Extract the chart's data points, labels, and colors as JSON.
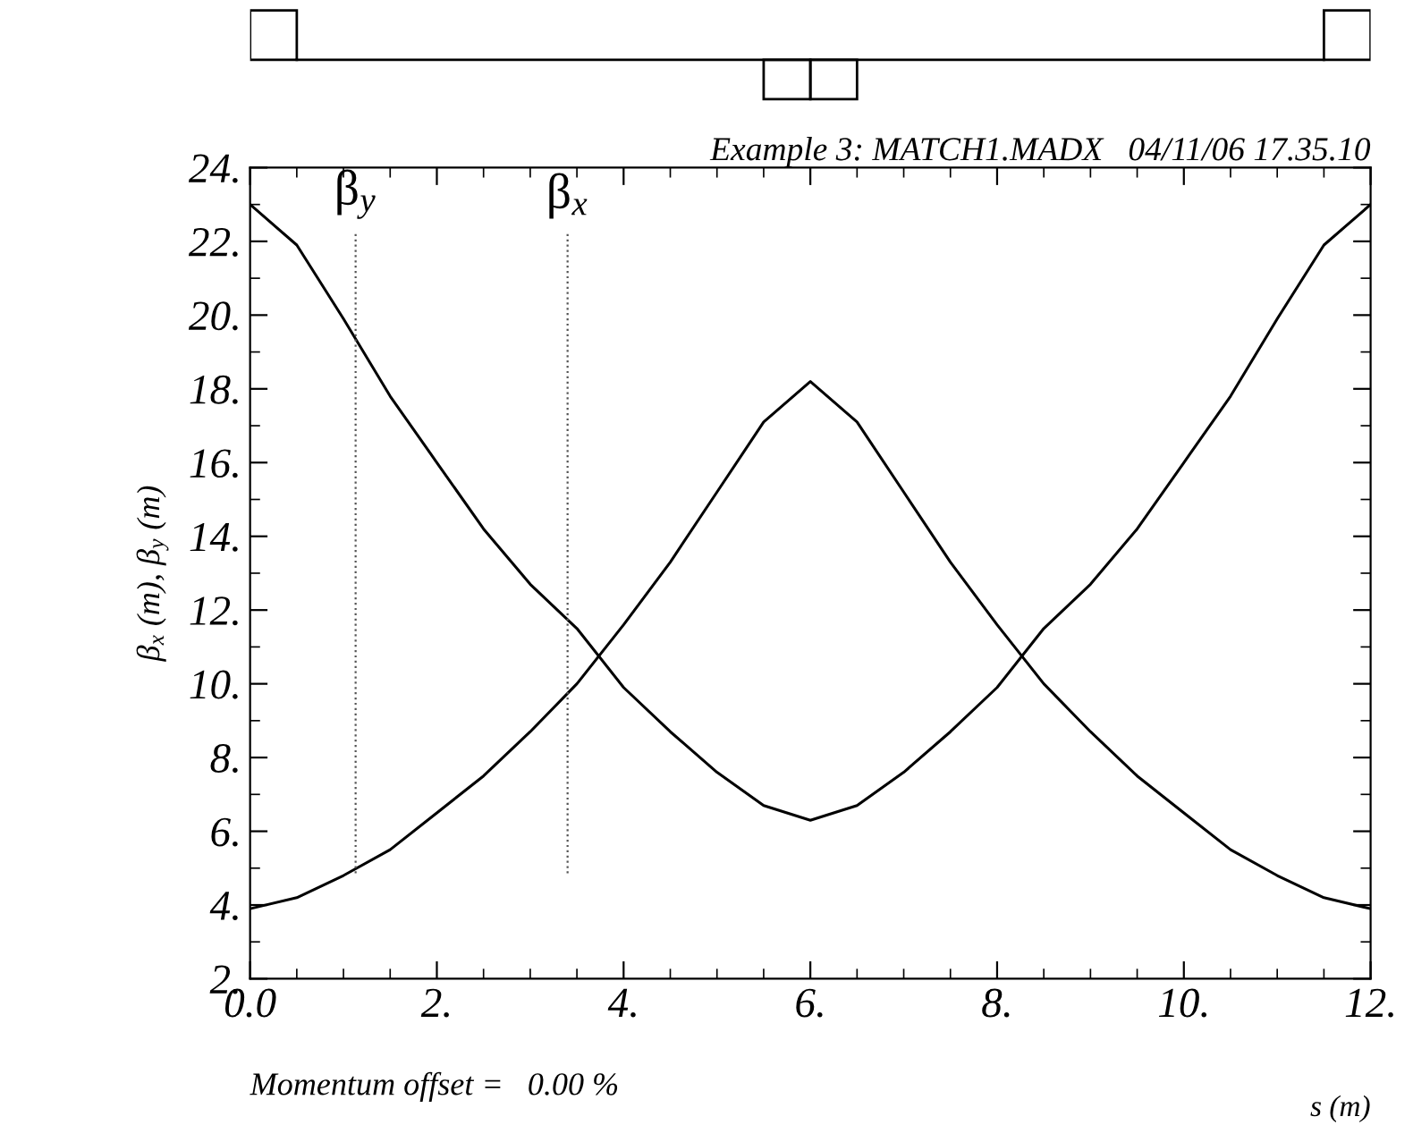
{
  "chart_data": {
    "type": "line",
    "title": "Example 3: MATCH1.MADX   04/11/06 17.35.10",
    "xlabel": "s (m)",
    "ylabel": "β$_{x}$ (m), β$_{y}$ (m)",
    "annotations": [
      "Momentum offset =   0.00 %"
    ],
    "x": [
      0,
      0.5,
      1,
      1.5,
      2,
      2.5,
      3,
      3.5,
      4,
      4.5,
      5,
      5.5,
      6,
      6.5,
      7,
      7.5,
      8,
      8.5,
      9,
      9.5,
      10,
      10.5,
      11,
      11.5,
      12
    ],
    "series": [
      {
        "color": "#000000",
        "values": [
          23.0,
          21.9,
          19.9,
          17.8,
          16.0,
          14.2,
          12.7,
          11.5,
          9.9,
          8.7,
          7.6,
          6.7,
          6.3,
          6.7,
          7.6,
          8.7,
          9.9,
          11.5,
          12.7,
          14.2,
          16.0,
          17.8,
          19.9,
          21.9,
          23.0
        ]
      },
      {
        "color": "#000000",
        "values": [
          3.9,
          4.2,
          4.8,
          5.5,
          6.5,
          7.5,
          8.7,
          10.0,
          11.6,
          13.3,
          15.2,
          17.1,
          18.2,
          17.1,
          15.2,
          13.3,
          11.6,
          10.0,
          8.7,
          7.5,
          6.5,
          5.5,
          4.8,
          4.2,
          3.9
        ]
      }
    ],
    "ref_lines": [
      {
        "axis": "x",
        "value": 1.13,
        "label": "β$_{y}$",
        "color": "#555555",
        "line_style": "dotted"
      },
      {
        "axis": "x",
        "value": 3.4,
        "label": "β$_{x}$",
        "color": "#555555",
        "line_style": "dotted"
      }
    ],
    "xlim": [
      0,
      12
    ],
    "ylim": [
      2,
      24
    ],
    "xticks": [
      {
        "value": 0,
        "label": "0.0"
      },
      {
        "value": 2,
        "label": "2."
      },
      {
        "value": 4,
        "label": "4."
      },
      {
        "value": 6,
        "label": "6."
      },
      {
        "value": 8,
        "label": "8."
      },
      {
        "value": 10,
        "label": "10."
      },
      {
        "value": 12,
        "label": "12."
      }
    ],
    "yticks": [
      {
        "value": 2,
        "label": "2."
      },
      {
        "value": 4,
        "label": "4."
      },
      {
        "value": 6,
        "label": "6."
      },
      {
        "value": 8,
        "label": "8."
      },
      {
        "value": 10,
        "label": "10."
      },
      {
        "value": 12,
        "label": "12."
      },
      {
        "value": 14,
        "label": "14."
      },
      {
        "value": 16,
        "label": "16."
      },
      {
        "value": 18,
        "label": "18."
      },
      {
        "value": 20,
        "label": "20."
      },
      {
        "value": 22,
        "label": "22."
      },
      {
        "value": 24,
        "label": "24."
      }
    ],
    "grid": false,
    "legend": false,
    "marker": "none",
    "line_style": "solid"
  }
}
